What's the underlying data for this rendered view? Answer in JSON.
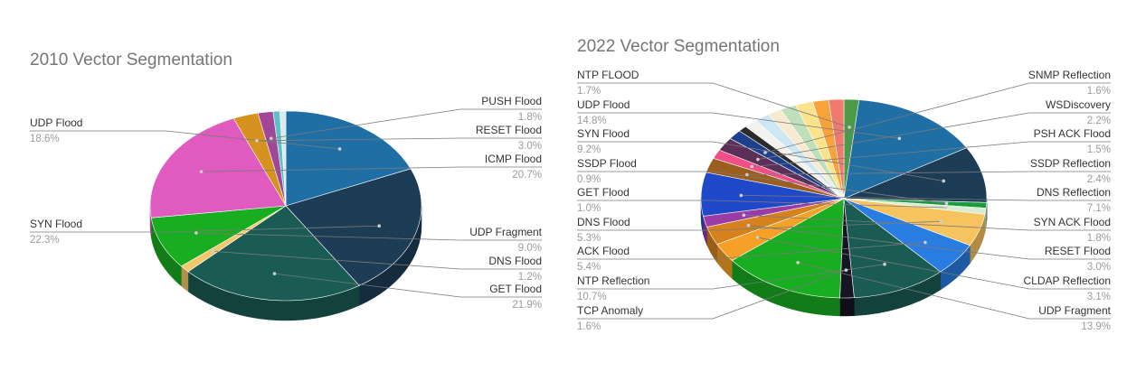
{
  "chart_data": [
    {
      "type": "pie",
      "title": "2010 Vector Segmentation",
      "three_d": true,
      "legend": "labels-with-leader-lines",
      "slices": [
        {
          "label": "UDP Flood",
          "value": 18.6,
          "value_label": "18.6%",
          "color": "#1f6fa5"
        },
        {
          "label": "SYN Flood",
          "value": 22.3,
          "value_label": "22.3%",
          "color": "#1d3c56"
        },
        {
          "label": "GET Flood",
          "value": 21.9,
          "value_label": "21.9%",
          "color": "#1a5b54"
        },
        {
          "label": "DNS Flood",
          "value": 1.2,
          "value_label": "1.2%",
          "color": "#f4c86a"
        },
        {
          "label": "UDP Fragment",
          "value": 9.0,
          "value_label": "9.0%",
          "color": "#19ad22"
        },
        {
          "label": "ICMP Flood",
          "value": 20.7,
          "value_label": "20.7%",
          "color": "#df5bbf"
        },
        {
          "label": "RESET Flood",
          "value": 3.0,
          "value_label": "3.0%",
          "color": "#d5921e"
        },
        {
          "label": "PUSH Flood",
          "value": 1.8,
          "value_label": "1.8%",
          "color": "#a0479a"
        },
        {
          "label": "",
          "value": 0.8,
          "value_label": "",
          "color": "#5fc0c5"
        },
        {
          "label": "",
          "value": 0.7,
          "value_label": "",
          "color": "#d7ebef"
        }
      ]
    },
    {
      "type": "pie",
      "title": "2022 Vector Segmentation",
      "three_d": true,
      "legend": "labels-with-leader-lines",
      "slices": [
        {
          "label": "NTP FLOOD",
          "value": 1.7,
          "value_label": "1.7%",
          "color": "#4b9a49"
        },
        {
          "label": "UDP Flood",
          "value": 14.8,
          "value_label": "14.8%",
          "color": "#1f6fa5"
        },
        {
          "label": "SYN Flood",
          "value": 9.2,
          "value_label": "9.2%",
          "color": "#1d3c56"
        },
        {
          "label": "SSDP Flood",
          "value": 0.9,
          "value_label": "0.9%",
          "color": "#1b9c3c"
        },
        {
          "label": "GET Flood",
          "value": 1.0,
          "value_label": "1.0%",
          "color": "#d8ecd0"
        },
        {
          "label": "DNS Flood",
          "value": 5.3,
          "value_label": "5.3%",
          "color": "#f7c35e"
        },
        {
          "label": "ACK Flood",
          "value": 5.4,
          "value_label": "5.4%",
          "color": "#2a7de0"
        },
        {
          "label": "NTP Reflection",
          "value": 10.7,
          "value_label": "10.7%",
          "color": "#1a5b54"
        },
        {
          "label": "TCP Anomaly",
          "value": 1.6,
          "value_label": "1.6%",
          "color": "#171423"
        },
        {
          "label": "UDP Fragment",
          "value": 13.9,
          "value_label": "13.9%",
          "color": "#19ad22"
        },
        {
          "label": "CLDAP Reflection",
          "value": 3.1,
          "value_label": "3.1%",
          "color": "#f5a127"
        },
        {
          "label": "RESET Flood",
          "value": 3.0,
          "value_label": "3.0%",
          "color": "#d5821e"
        },
        {
          "label": "SYN ACK Flood",
          "value": 1.8,
          "value_label": "1.8%",
          "color": "#9b3ba6"
        },
        {
          "label": "DNS Reflection",
          "value": 7.1,
          "value_label": "7.1%",
          "color": "#1f49c9"
        },
        {
          "label": "SSDP Reflection",
          "value": 2.4,
          "value_label": "2.4%",
          "color": "#9b5e1e"
        },
        {
          "label": "PSH ACK Flood",
          "value": 1.5,
          "value_label": "1.5%",
          "color": "#ef4f86"
        },
        {
          "label": "WSDiscovery",
          "value": 2.2,
          "value_label": "2.2%",
          "color": "#5a2f58"
        },
        {
          "label": "SNMP Reflection",
          "value": 1.6,
          "value_label": "1.6%",
          "color": "#1e3f8c"
        },
        {
          "label": "",
          "value": 1.0,
          "value_label": "",
          "color": "#2b2b2b"
        },
        {
          "label": "",
          "value": 1.5,
          "value_label": "",
          "color": "#f4f2ef"
        },
        {
          "label": "",
          "value": 1.7,
          "value_label": "",
          "color": "#cde7f5"
        },
        {
          "label": "",
          "value": 1.6,
          "value_label": "",
          "color": "#f8ead0"
        },
        {
          "label": "",
          "value": 1.8,
          "value_label": "",
          "color": "#bfe0bb"
        },
        {
          "label": "",
          "value": 2.0,
          "value_label": "",
          "color": "#fbe38e"
        },
        {
          "label": "",
          "value": 1.8,
          "value_label": "",
          "color": "#f7a23a"
        },
        {
          "label": "",
          "value": 1.7,
          "value_label": "",
          "color": "#f07a6d"
        }
      ]
    }
  ]
}
